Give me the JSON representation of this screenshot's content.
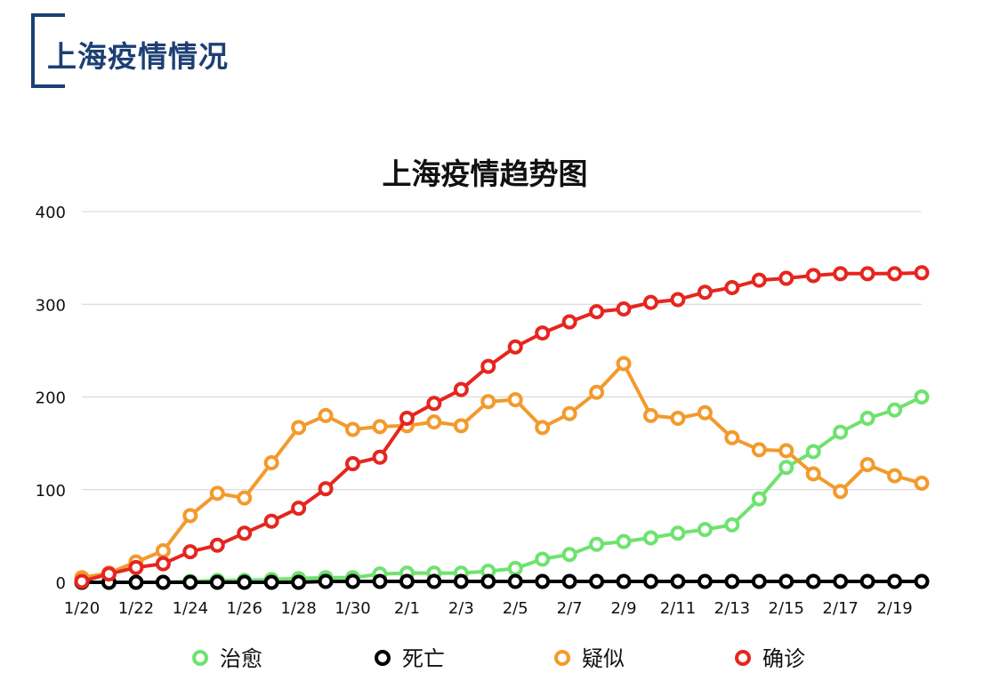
{
  "page_title": "上海疫情情况",
  "chart_data": {
    "type": "line",
    "title": "上海疫情趋势图",
    "xlabel": "",
    "ylabel": "",
    "ylim": [
      0,
      400
    ],
    "yticks": [
      0,
      100,
      200,
      300,
      400
    ],
    "grid": true,
    "legend_position": "bottom",
    "x": [
      "1/20",
      "1/21",
      "1/22",
      "1/23",
      "1/24",
      "1/25",
      "1/26",
      "1/27",
      "1/28",
      "1/29",
      "1/30",
      "1/31",
      "2/1",
      "2/2",
      "2/3",
      "2/4",
      "2/5",
      "2/6",
      "2/7",
      "2/8",
      "2/9",
      "2/10",
      "2/11",
      "2/12",
      "2/13",
      "2/14",
      "2/15",
      "2/16",
      "2/17",
      "2/18",
      "2/19",
      "2/20"
    ],
    "x_tick_labels": [
      "1/20",
      "1/22",
      "1/24",
      "1/26",
      "1/28",
      "1/30",
      "2/1",
      "2/3",
      "2/5",
      "2/7",
      "2/9",
      "2/11",
      "2/13",
      "2/15",
      "2/17",
      "2/19"
    ],
    "series": [
      {
        "name": "治愈",
        "color": "#6fe26f",
        "values": [
          0,
          0,
          0,
          0,
          1,
          2,
          2,
          3,
          4,
          5,
          5,
          9,
          10,
          10,
          10,
          12,
          15,
          25,
          30,
          41,
          44,
          48,
          53,
          57,
          62,
          90,
          124,
          141,
          162,
          177,
          186,
          200
        ]
      },
      {
        "name": "死亡",
        "color": "#000000",
        "values": [
          0,
          0,
          0,
          0,
          0,
          0,
          0,
          0,
          0,
          1,
          1,
          1,
          1,
          1,
          1,
          1,
          1,
          1,
          1,
          1,
          1,
          1,
          1,
          1,
          1,
          1,
          1,
          1,
          1,
          1,
          1,
          1
        ]
      },
      {
        "name": "疑似",
        "color": "#f39a2c",
        "values": [
          5,
          10,
          22,
          34,
          72,
          96,
          91,
          129,
          167,
          180,
          165,
          168,
          169,
          173,
          169,
          195,
          197,
          167,
          182,
          205,
          236,
          180,
          177,
          183,
          156,
          143,
          142,
          117,
          98,
          127,
          115,
          107
        ]
      },
      {
        "name": "确诊",
        "color": "#e5261f",
        "values": [
          1,
          9,
          16,
          20,
          33,
          40,
          53,
          66,
          80,
          101,
          128,
          135,
          177,
          193,
          208,
          233,
          254,
          269,
          281,
          292,
          295,
          302,
          305,
          313,
          318,
          326,
          328,
          331,
          333,
          333,
          333,
          334
        ]
      }
    ]
  }
}
